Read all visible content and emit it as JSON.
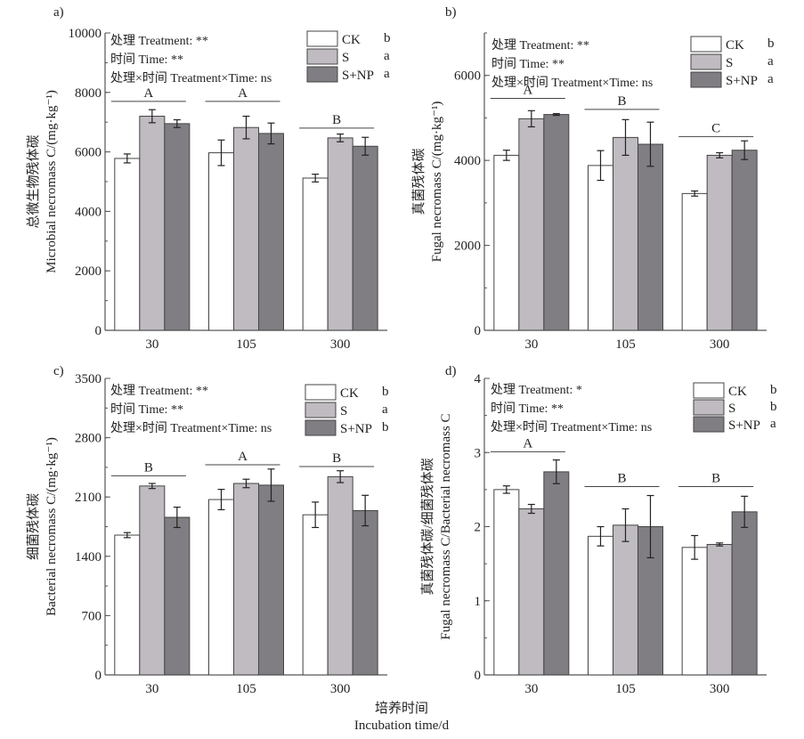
{
  "figure": {
    "xlabel_cn": "培养时间",
    "xlabel_en": "Incubation time/d"
  },
  "chart_data": [
    {
      "type": "bar",
      "panel_label": "a)",
      "title": "",
      "categories": [
        "30",
        "105",
        "300"
      ],
      "ylabel_cn": "总微生物残体碳",
      "ylabel_en": "Microbial necromass C/(mg·kg⁻¹)",
      "ylabel": "总微生物残体碳 Microbial necromass C/(mg·kg⁻¹)",
      "xlabel": "",
      "ylim": [
        0,
        10000
      ],
      "yticks": [
        0,
        2000,
        4000,
        6000,
        8000,
        10000
      ],
      "yminor": 1000,
      "grid": false,
      "legend_position": "top-right",
      "stats": [
        "处理 Treatment: **",
        "时间 Time: **",
        "处理×时间 Treatment×Time: ns"
      ],
      "series": [
        {
          "name": "CK",
          "color": "#ffffff",
          "letter": "b",
          "values": [
            5780,
            5970,
            5120
          ],
          "errors": [
            150,
            430,
            130
          ]
        },
        {
          "name": "S",
          "color": "#bfbbc1",
          "letter": "a",
          "values": [
            7200,
            6820,
            6470
          ],
          "errors": [
            220,
            380,
            130
          ]
        },
        {
          "name": "S+NP",
          "color": "#807e83",
          "letter": "a",
          "values": [
            6950,
            6620,
            6190
          ],
          "errors": [
            130,
            350,
            300
          ]
        }
      ],
      "group_letters": [
        {
          "category": "30",
          "letter": "A",
          "level": 7700
        },
        {
          "category": "105",
          "letter": "A",
          "level": 7700
        },
        {
          "category": "300",
          "letter": "B",
          "level": 6800
        }
      ]
    },
    {
      "type": "bar",
      "panel_label": "b)",
      "title": "",
      "categories": [
        "30",
        "105",
        "300"
      ],
      "ylabel_cn": "真菌残体碳",
      "ylabel_en": "Fugal necromass C/(mg·kg⁻¹)",
      "ylabel": "真菌残体碳 Fugal necromass C/(mg·kg⁻¹)",
      "xlabel": "",
      "ylim": [
        0,
        7000
      ],
      "yticks": [
        0,
        2000,
        4000,
        6000
      ],
      "yminor": 1000,
      "grid": false,
      "legend_position": "top-right",
      "stats": [
        "处理 Treatment: **",
        "时间 Time: **",
        "处理×时间 Treatment×Time: ns"
      ],
      "series": [
        {
          "name": "CK",
          "color": "#ffffff",
          "letter": "b",
          "values": [
            4120,
            3880,
            3220
          ],
          "errors": [
            120,
            350,
            60
          ]
        },
        {
          "name": "S",
          "color": "#bfbbc1",
          "letter": "a",
          "values": [
            4980,
            4540,
            4120
          ],
          "errors": [
            190,
            420,
            60
          ]
        },
        {
          "name": "S+NP",
          "color": "#807e83",
          "letter": "a",
          "values": [
            5080,
            4380,
            4240
          ],
          "errors": [
            20,
            520,
            220
          ]
        }
      ],
      "group_letters": [
        {
          "category": "30",
          "letter": "A",
          "level": 5460
        },
        {
          "category": "105",
          "letter": "B",
          "level": 5200
        },
        {
          "category": "300",
          "letter": "C",
          "level": 4560
        }
      ]
    },
    {
      "type": "bar",
      "panel_label": "c)",
      "title": "",
      "categories": [
        "30",
        "105",
        "300"
      ],
      "ylabel_cn": "细菌残体碳",
      "ylabel_en": "Bacterial necromass C/(mg·kg⁻¹)",
      "ylabel": "细菌残体碳 Bacterial necromass C/(mg·kg⁻¹)",
      "xlabel": "",
      "ylim": [
        0,
        3500
      ],
      "yticks": [
        0,
        700,
        1400,
        2100,
        2800,
        3500
      ],
      "yminor": 350,
      "grid": false,
      "legend_position": "top-right",
      "stats": [
        "处理 Treatment: **",
        "时间 Time: **",
        "处理×时间 Treatment×Time: ns"
      ],
      "series": [
        {
          "name": "CK",
          "color": "#ffffff",
          "letter": "b",
          "values": [
            1650,
            2070,
            1890
          ],
          "errors": [
            30,
            120,
            150
          ]
        },
        {
          "name": "S",
          "color": "#bfbbc1",
          "letter": "a",
          "values": [
            2230,
            2260,
            2340
          ],
          "errors": [
            30,
            50,
            70
          ]
        },
        {
          "name": "S+NP",
          "color": "#807e83",
          "letter": "b",
          "values": [
            1860,
            2240,
            1940
          ],
          "errors": [
            120,
            190,
            180
          ]
        }
      ],
      "group_letters": [
        {
          "category": "30",
          "letter": "B",
          "level": 2350
        },
        {
          "category": "105",
          "letter": "A",
          "level": 2480
        },
        {
          "category": "300",
          "letter": "B",
          "level": 2460
        }
      ]
    },
    {
      "type": "bar",
      "panel_label": "d)",
      "title": "",
      "categories": [
        "30",
        "105",
        "300"
      ],
      "ylabel_cn": "真菌残体碳/细菌残体碳",
      "ylabel_en": "Fugal necromass C/Bacterial necromass C",
      "ylabel": "真菌残体碳/细菌残体碳 Fugal necromass C/Bacterial necromass C",
      "xlabel": "",
      "ylim": [
        0,
        4
      ],
      "yticks": [
        0,
        1,
        2,
        3,
        4
      ],
      "yminor": 0.5,
      "grid": false,
      "legend_position": "top-right",
      "stats": [
        "处理 Treatment: *",
        "时间 Time: **",
        "处理×时间 Treatment×Time: ns"
      ],
      "series": [
        {
          "name": "CK",
          "color": "#ffffff",
          "letter": "b",
          "values": [
            2.5,
            1.87,
            1.72
          ],
          "errors": [
            0.05,
            0.13,
            0.16
          ]
        },
        {
          "name": "S",
          "color": "#bfbbc1",
          "letter": "b",
          "values": [
            2.24,
            2.02,
            1.76
          ],
          "errors": [
            0.06,
            0.22,
            0.02
          ]
        },
        {
          "name": "S+NP",
          "color": "#807e83",
          "letter": "a",
          "values": [
            2.74,
            2.0,
            2.2
          ],
          "errors": [
            0.16,
            0.42,
            0.21
          ]
        }
      ],
      "group_letters": [
        {
          "category": "30",
          "letter": "A",
          "level": 3.01
        },
        {
          "category": "105",
          "letter": "B",
          "level": 2.54
        },
        {
          "category": "300",
          "letter": "B",
          "level": 2.54
        }
      ]
    }
  ]
}
